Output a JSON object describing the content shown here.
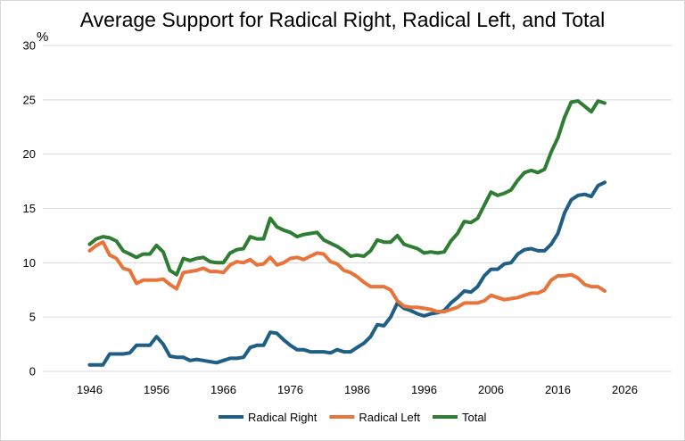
{
  "chart_data": {
    "type": "line",
    "title": "Average Support for Radical Right, Radical Left, and Total",
    "ylabel": "%",
    "xlabel": "",
    "xlim": [
      1939,
      2033
    ],
    "ylim": [
      0,
      30
    ],
    "x_ticks": [
      1946,
      1956,
      1966,
      1976,
      1986,
      1996,
      2006,
      2016,
      2026
    ],
    "y_ticks": [
      0,
      5,
      10,
      15,
      20,
      25,
      30
    ],
    "grid": "horizontal",
    "legend_position": "bottom",
    "x": [
      1946,
      1947,
      1948,
      1949,
      1950,
      1951,
      1952,
      1953,
      1954,
      1955,
      1956,
      1957,
      1958,
      1959,
      1960,
      1961,
      1962,
      1963,
      1964,
      1965,
      1966,
      1967,
      1968,
      1969,
      1970,
      1971,
      1972,
      1973,
      1974,
      1975,
      1976,
      1977,
      1978,
      1979,
      1980,
      1981,
      1982,
      1983,
      1984,
      1985,
      1986,
      1987,
      1988,
      1989,
      1990,
      1991,
      1992,
      1993,
      1994,
      1995,
      1996,
      1997,
      1998,
      1999,
      2000,
      2001,
      2002,
      2003,
      2004,
      2005,
      2006,
      2007,
      2008,
      2009,
      2010,
      2011,
      2012,
      2013,
      2014,
      2015,
      2016,
      2017,
      2018,
      2019,
      2020,
      2021,
      2022,
      2023
    ],
    "series": [
      {
        "name": "Radical Right",
        "color": "#1f5f85",
        "values": [
          0.6,
          0.6,
          0.6,
          1.6,
          1.6,
          1.6,
          1.7,
          2.4,
          2.4,
          2.4,
          3.2,
          2.5,
          1.4,
          1.3,
          1.3,
          1.0,
          1.1,
          1.0,
          0.9,
          0.8,
          1.0,
          1.2,
          1.2,
          1.3,
          2.2,
          2.4,
          2.4,
          3.6,
          3.5,
          2.9,
          2.4,
          2.0,
          2.0,
          1.8,
          1.8,
          1.8,
          1.7,
          2.0,
          1.8,
          1.8,
          2.2,
          2.6,
          3.2,
          4.3,
          4.2,
          5.0,
          6.3,
          5.8,
          5.6,
          5.3,
          5.1,
          5.3,
          5.4,
          5.6,
          6.3,
          6.8,
          7.4,
          7.3,
          7.8,
          8.8,
          9.4,
          9.4,
          9.9,
          10.0,
          10.8,
          11.2,
          11.3,
          11.1,
          11.1,
          11.7,
          12.7,
          14.6,
          15.8,
          16.2,
          16.3,
          16.1,
          17.1,
          17.4
        ]
      },
      {
        "name": "Radical Left",
        "color": "#e8743b",
        "values": [
          11.1,
          11.6,
          11.9,
          10.7,
          10.4,
          9.5,
          9.3,
          8.1,
          8.4,
          8.4,
          8.4,
          8.5,
          8.0,
          7.6,
          9.1,
          9.2,
          9.3,
          9.5,
          9.2,
          9.2,
          9.1,
          9.8,
          10.1,
          10.0,
          10.3,
          9.8,
          9.9,
          10.5,
          9.8,
          10.0,
          10.4,
          10.5,
          10.3,
          10.6,
          10.9,
          10.8,
          10.1,
          9.9,
          9.3,
          9.1,
          8.7,
          8.2,
          7.8,
          7.8,
          7.8,
          7.5,
          6.5,
          6.0,
          5.9,
          5.9,
          5.8,
          5.7,
          5.5,
          5.5,
          5.7,
          5.9,
          6.3,
          6.3,
          6.3,
          6.5,
          7.0,
          6.8,
          6.6,
          6.7,
          6.8,
          7.0,
          7.2,
          7.2,
          7.5,
          8.4,
          8.8,
          8.8,
          8.9,
          8.6,
          8.0,
          7.8,
          7.8,
          7.4
        ]
      },
      {
        "name": "Total",
        "color": "#2e7d32",
        "values": [
          11.7,
          12.2,
          12.4,
          12.3,
          12.0,
          11.1,
          10.8,
          10.5,
          10.8,
          10.8,
          11.6,
          11.0,
          9.3,
          8.9,
          10.4,
          10.2,
          10.4,
          10.5,
          10.1,
          10.0,
          10.0,
          10.9,
          11.2,
          11.3,
          12.4,
          12.2,
          12.2,
          14.1,
          13.3,
          13.0,
          12.8,
          12.4,
          12.6,
          12.7,
          12.8,
          12.1,
          11.8,
          11.5,
          11.1,
          10.6,
          10.7,
          10.6,
          11.1,
          12.1,
          11.9,
          11.9,
          12.5,
          11.7,
          11.5,
          11.3,
          10.9,
          11.0,
          10.9,
          11.0,
          12.0,
          12.7,
          13.8,
          13.7,
          14.1,
          15.3,
          16.5,
          16.2,
          16.4,
          16.7,
          17.6,
          18.3,
          18.5,
          18.3,
          18.6,
          20.2,
          21.5,
          23.4,
          24.8,
          24.9,
          24.4,
          23.9,
          24.9,
          24.7
        ]
      }
    ]
  }
}
